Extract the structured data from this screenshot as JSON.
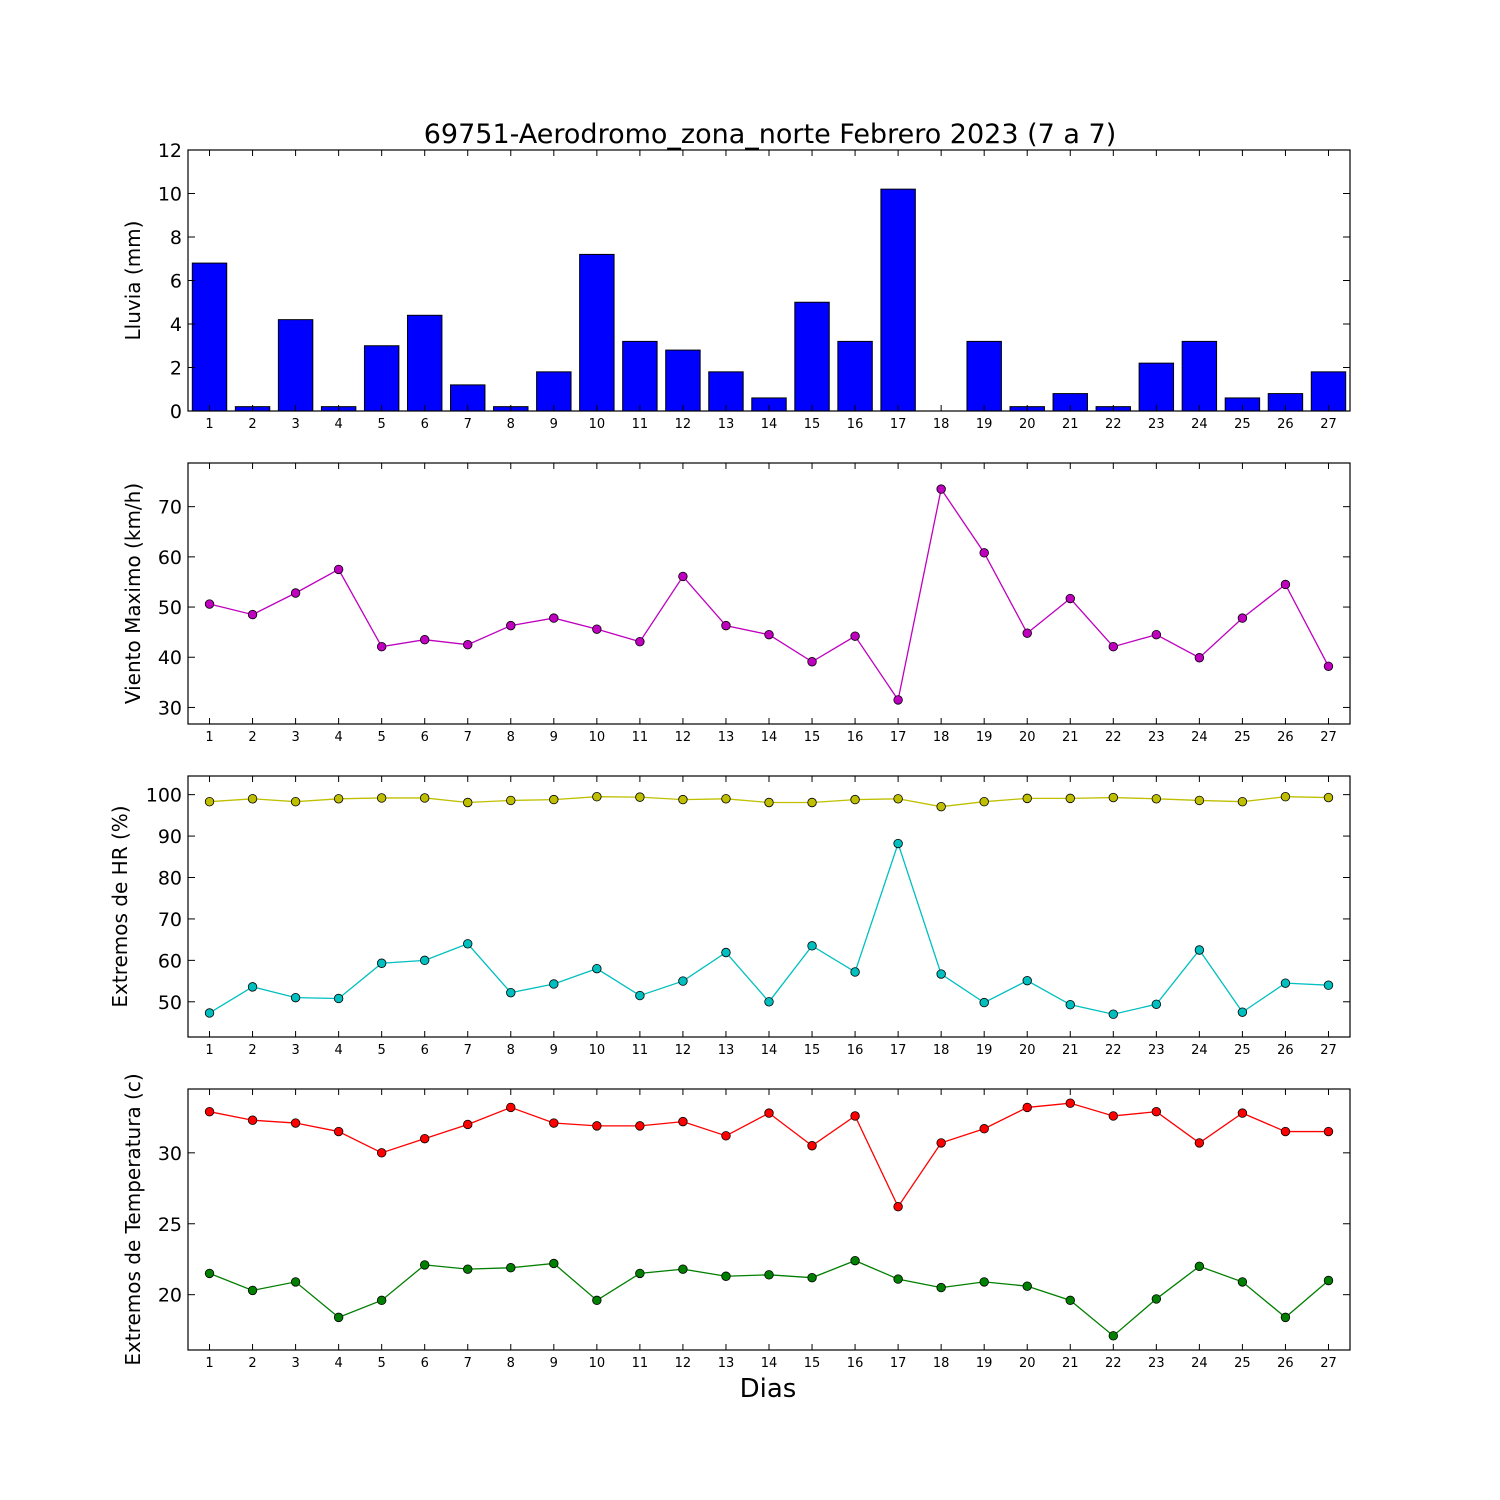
{
  "title": "69751-Aerodromo_zona_norte Febrero 2023  (7 a 7)",
  "xlabel": "Dias",
  "colors": {
    "rain": "#0000ff",
    "wind": "#bf00bf",
    "hr_max": "#bfbf00",
    "hr_min": "#00bfbf",
    "temp_max": "#ff0000",
    "temp_min": "#007f00"
  },
  "chart_data": [
    {
      "type": "bar",
      "ylabel": "Lluvia (mm)",
      "categories": [
        "1",
        "2",
        "3",
        "4",
        "5",
        "6",
        "7",
        "8",
        "9",
        "10",
        "11",
        "12",
        "13",
        "14",
        "15",
        "16",
        "17",
        "18",
        "19",
        "20",
        "21",
        "22",
        "23",
        "24",
        "25",
        "26",
        "27"
      ],
      "ylim": [
        0,
        12
      ],
      "yticks": [
        0,
        2,
        4,
        6,
        8,
        10,
        12
      ],
      "series": [
        {
          "values": [
            6.8,
            0.2,
            4.2,
            0.2,
            3.0,
            4.4,
            1.2,
            0.2,
            1.8,
            7.2,
            3.2,
            2.8,
            1.8,
            0.6,
            5.0,
            3.2,
            10.2,
            0.0,
            3.2,
            0.2,
            0.8,
            0.2,
            2.2,
            3.2,
            0.6,
            0.8,
            1.8
          ]
        }
      ]
    },
    {
      "type": "line",
      "ylabel": "Viento Maximo (km/h)",
      "categories": [
        "1",
        "2",
        "3",
        "4",
        "5",
        "6",
        "7",
        "8",
        "9",
        "10",
        "11",
        "12",
        "13",
        "14",
        "15",
        "16",
        "17",
        "18",
        "19",
        "20",
        "21",
        "22",
        "23",
        "24",
        "25",
        "26",
        "27"
      ],
      "ylim": [
        26.7,
        78.7
      ],
      "yticks": [
        30,
        40,
        50,
        60,
        70
      ],
      "series": [
        {
          "values": [
            50.6,
            48.5,
            52.8,
            57.5,
            42.1,
            43.5,
            42.5,
            46.3,
            47.8,
            45.6,
            43.1,
            56.1,
            46.3,
            44.5,
            39.1,
            44.2,
            31.5,
            73.5,
            60.8,
            44.8,
            51.7,
            42.1,
            44.5,
            39.9,
            47.8,
            54.5,
            38.2
          ]
        }
      ]
    },
    {
      "type": "line",
      "ylabel": "Extremos de HR (%)",
      "categories": [
        "1",
        "2",
        "3",
        "4",
        "5",
        "6",
        "7",
        "8",
        "9",
        "10",
        "11",
        "12",
        "13",
        "14",
        "15",
        "16",
        "17",
        "18",
        "19",
        "20",
        "21",
        "22",
        "23",
        "24",
        "25",
        "26",
        "27"
      ],
      "ylim": [
        41.5,
        104.5
      ],
      "yticks": [
        50,
        60,
        70,
        80,
        90,
        100
      ],
      "series": [
        {
          "values": [
            98.3,
            99.0,
            98.3,
            99.0,
            99.2,
            99.2,
            98.1,
            98.6,
            98.8,
            99.5,
            99.4,
            98.8,
            99.0,
            98.1,
            98.1,
            98.8,
            99.0,
            97.1,
            98.3,
            99.1,
            99.1,
            99.3,
            99.0,
            98.6,
            98.3,
            99.5,
            99.3
          ]
        },
        {
          "values": [
            47.3,
            53.6,
            51.0,
            50.8,
            59.3,
            60.0,
            64.0,
            52.2,
            54.3,
            58.0,
            51.5,
            55.0,
            61.9,
            50.0,
            63.5,
            57.2,
            88.2,
            56.7,
            49.8,
            55.1,
            49.3,
            47.0,
            49.4,
            62.5,
            47.5,
            54.5,
            54.0
          ]
        }
      ]
    },
    {
      "type": "line",
      "ylabel": "Extremos de Temperatura (c)",
      "categories": [
        "1",
        "2",
        "3",
        "4",
        "5",
        "6",
        "7",
        "8",
        "9",
        "10",
        "11",
        "12",
        "13",
        "14",
        "15",
        "16",
        "17",
        "18",
        "19",
        "20",
        "21",
        "22",
        "23",
        "24",
        "25",
        "26",
        "27"
      ],
      "ylim": [
        16.1,
        34.5
      ],
      "yticks": [
        20,
        25,
        30
      ],
      "series": [
        {
          "values": [
            32.9,
            32.3,
            32.1,
            31.5,
            30.0,
            31.0,
            32.0,
            33.2,
            32.1,
            31.9,
            31.9,
            32.2,
            31.2,
            32.8,
            30.5,
            32.6,
            26.2,
            30.7,
            31.7,
            33.2,
            33.5,
            32.6,
            32.9,
            30.7,
            32.8,
            31.5,
            31.5
          ]
        },
        {
          "values": [
            21.5,
            20.3,
            20.9,
            18.4,
            19.6,
            22.1,
            21.8,
            21.9,
            22.2,
            19.6,
            21.5,
            21.8,
            21.3,
            21.4,
            21.2,
            22.4,
            21.1,
            20.5,
            20.9,
            20.6,
            19.6,
            17.1,
            19.7,
            22.0,
            20.9,
            18.4,
            21.0
          ]
        }
      ]
    }
  ]
}
